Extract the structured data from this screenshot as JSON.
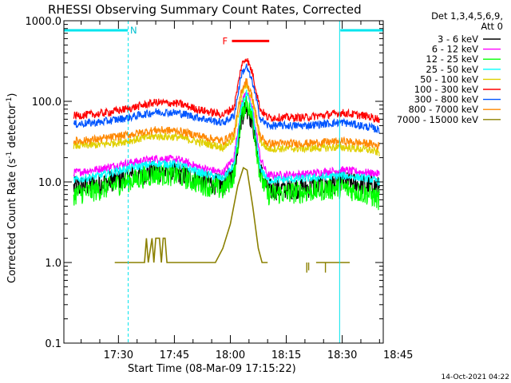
{
  "chart_data": {
    "type": "line",
    "title": "RHESSI Observing Summary Count Rates, Corrected",
    "xlabel": "Start Time (08-Mar-09 17:15:22)",
    "ylabel_main": "Corrected Count Rate (s",
    "ylabel_sup1": "-1",
    "ylabel_mid": " detector",
    "ylabel_sup2": "-1",
    "ylabel_end": ")",
    "yscale": "log",
    "ylim": [
      0.1,
      1000.0
    ],
    "y_ticks": [
      {
        "v": 1000.0,
        "label": "1000.0"
      },
      {
        "v": 100.0,
        "label": "100.0"
      },
      {
        "v": 10.0,
        "label": "10.0"
      },
      {
        "v": 1.0,
        "label": "1.0"
      },
      {
        "v": 0.1,
        "label": "0.1"
      }
    ],
    "xlim_min": [
      15.37,
      101.0
    ],
    "x_ticks": [
      {
        "min": 30,
        "label": "17:30"
      },
      {
        "min": 45,
        "label": "17:45"
      },
      {
        "min": 60,
        "label": "18:00"
      },
      {
        "min": 75,
        "label": "18:15"
      },
      {
        "min": 90,
        "label": "18:30"
      },
      {
        "min": 105,
        "label": "18:45"
      }
    ],
    "legend_header": [
      "Det 1,3,4,5,6,9,",
      "Att 0"
    ],
    "series": [
      {
        "name": "3 - 6 keV",
        "color": "#000000",
        "points": [
          [
            18,
            8.5
          ],
          [
            25,
            9.5
          ],
          [
            32,
            11.5
          ],
          [
            40,
            13.5
          ],
          [
            46,
            13
          ],
          [
            52,
            10.5
          ],
          [
            58,
            9
          ],
          [
            61,
            14
          ],
          [
            63,
            65
          ],
          [
            64.3,
            88
          ],
          [
            66,
            55
          ],
          [
            68,
            14
          ],
          [
            70,
            8
          ],
          [
            80,
            8.5
          ],
          [
            90,
            10
          ],
          [
            97,
            9
          ],
          [
            100,
            8.5
          ]
        ]
      },
      {
        "name": "6 - 12 keV",
        "color": "#ff00ff",
        "points": [
          [
            18,
            13
          ],
          [
            25,
            14.5
          ],
          [
            32,
            17
          ],
          [
            40,
            19.5
          ],
          [
            46,
            19
          ],
          [
            52,
            15
          ],
          [
            58,
            13
          ],
          [
            61,
            20
          ],
          [
            63,
            95
          ],
          [
            64.3,
            135
          ],
          [
            66,
            80
          ],
          [
            68,
            20
          ],
          [
            70,
            12
          ],
          [
            80,
            12.5
          ],
          [
            90,
            14
          ],
          [
            97,
            13
          ],
          [
            100,
            12.5
          ]
        ]
      },
      {
        "name": "12 - 25 keV",
        "color": "#00ff00",
        "points": [
          [
            18,
            7
          ],
          [
            25,
            8
          ],
          [
            32,
            10
          ],
          [
            40,
            12.5
          ],
          [
            46,
            12
          ],
          [
            52,
            9.5
          ],
          [
            58,
            8
          ],
          [
            61,
            12
          ],
          [
            63,
            70
          ],
          [
            64.3,
            105
          ],
          [
            66,
            60
          ],
          [
            68,
            12
          ],
          [
            70,
            7
          ],
          [
            80,
            7.5
          ],
          [
            90,
            8.5
          ],
          [
            97,
            7
          ],
          [
            100,
            6
          ]
        ]
      },
      {
        "name": "25 - 50 keV",
        "color": "#00ffff",
        "points": [
          [
            18,
            10.5
          ],
          [
            25,
            12
          ],
          [
            32,
            14.5
          ],
          [
            40,
            17
          ],
          [
            46,
            16.5
          ],
          [
            52,
            13
          ],
          [
            58,
            11
          ],
          [
            61,
            16
          ],
          [
            63,
            85
          ],
          [
            64.3,
            125
          ],
          [
            66,
            72
          ],
          [
            68,
            15
          ],
          [
            70,
            10.5
          ],
          [
            80,
            11
          ],
          [
            90,
            12
          ],
          [
            97,
            11
          ],
          [
            100,
            10
          ]
        ]
      },
      {
        "name": "50 - 100 keV",
        "color": "#e0d000",
        "points": [
          [
            18,
            28
          ],
          [
            25,
            29
          ],
          [
            32,
            32
          ],
          [
            40,
            37
          ],
          [
            46,
            36
          ],
          [
            52,
            31
          ],
          [
            58,
            27
          ],
          [
            61,
            34
          ],
          [
            63,
            120
          ],
          [
            64.3,
            160
          ],
          [
            66,
            100
          ],
          [
            68,
            32
          ],
          [
            70,
            26
          ],
          [
            80,
            26
          ],
          [
            90,
            27
          ],
          [
            97,
            25
          ],
          [
            100,
            23
          ]
        ]
      },
      {
        "name": "100 - 300 keV",
        "color": "#ff0000",
        "points": [
          [
            18,
            66
          ],
          [
            25,
            70
          ],
          [
            32,
            80
          ],
          [
            40,
            97
          ],
          [
            46,
            94
          ],
          [
            52,
            78
          ],
          [
            58,
            68
          ],
          [
            61,
            85
          ],
          [
            63,
            280
          ],
          [
            64.3,
            350
          ],
          [
            66,
            220
          ],
          [
            68,
            80
          ],
          [
            70,
            63
          ],
          [
            80,
            63
          ],
          [
            90,
            72
          ],
          [
            97,
            65
          ],
          [
            100,
            60
          ]
        ]
      },
      {
        "name": "300 - 800 keV",
        "color": "#0055ff",
        "points": [
          [
            18,
            52
          ],
          [
            25,
            55
          ],
          [
            32,
            62
          ],
          [
            40,
            74
          ],
          [
            46,
            72
          ],
          [
            52,
            62
          ],
          [
            58,
            54
          ],
          [
            61,
            66
          ],
          [
            63,
            220
          ],
          [
            64.3,
            270
          ],
          [
            66,
            170
          ],
          [
            68,
            62
          ],
          [
            70,
            50
          ],
          [
            80,
            50
          ],
          [
            90,
            55
          ],
          [
            97,
            48
          ],
          [
            100,
            44
          ]
        ]
      },
      {
        "name": "800 - 7000 keV",
        "color": "#ff8800",
        "points": [
          [
            18,
            32
          ],
          [
            25,
            34
          ],
          [
            32,
            38
          ],
          [
            40,
            44
          ],
          [
            46,
            43
          ],
          [
            52,
            37
          ],
          [
            58,
            32
          ],
          [
            61,
            40
          ],
          [
            63,
            140
          ],
          [
            64.3,
            180
          ],
          [
            66,
            110
          ],
          [
            68,
            37
          ],
          [
            70,
            30
          ],
          [
            80,
            30
          ],
          [
            90,
            32
          ],
          [
            97,
            30
          ],
          [
            100,
            28
          ]
        ]
      },
      {
        "name": "7000 - 15000 keV",
        "color": "#8b8000",
        "points": [
          [
            29,
            1.0
          ],
          [
            37,
            1.0
          ],
          [
            37.5,
            2.0
          ],
          [
            38,
            1.0
          ],
          [
            39,
            2.0
          ],
          [
            39.5,
            1.0
          ],
          [
            40,
            2.0
          ],
          [
            41,
            2.0
          ],
          [
            41.5,
            1.0
          ],
          [
            42,
            2.0
          ],
          [
            42.5,
            2.0
          ],
          [
            43,
            1.0
          ],
          [
            50,
            1.0
          ],
          [
            56,
            1.0
          ],
          [
            58,
            1.5
          ],
          [
            60,
            3.0
          ],
          [
            62,
            9.0
          ],
          [
            63.5,
            15
          ],
          [
            64.5,
            14
          ],
          [
            66,
            5.0
          ],
          [
            67.5,
            1.5
          ],
          [
            68.5,
            1.0
          ],
          [
            70,
            1.0
          ]
        ]
      },
      {
        "name": "7000 - 15000 keV segment",
        "color": "#8b8000",
        "points": [
          [
            83,
            1.0
          ],
          [
            92,
            1.0
          ]
        ]
      }
    ],
    "spikes": [
      {
        "x": 80.5,
        "from": 1.0,
        "to": 0.75,
        "color": "#8b8000"
      },
      {
        "x": 81.0,
        "from": 1.0,
        "to": 0.8,
        "color": "#8b8000"
      },
      {
        "x": 85.5,
        "from": 1.0,
        "to": 0.75,
        "color": "#8b8000"
      }
    ],
    "night_bars": [
      {
        "from": 15.37,
        "to": 32.5,
        "label": "N"
      },
      {
        "from": 89.5,
        "to": 101.0,
        "label": ""
      }
    ],
    "flare_bar": {
      "from": 63.0,
      "to": 70.0,
      "label": "F"
    },
    "cyan_vlines": [
      15.37,
      32.6,
      89.3,
      101.0
    ]
  },
  "timestamp": "14-Oct-2021 04:22"
}
